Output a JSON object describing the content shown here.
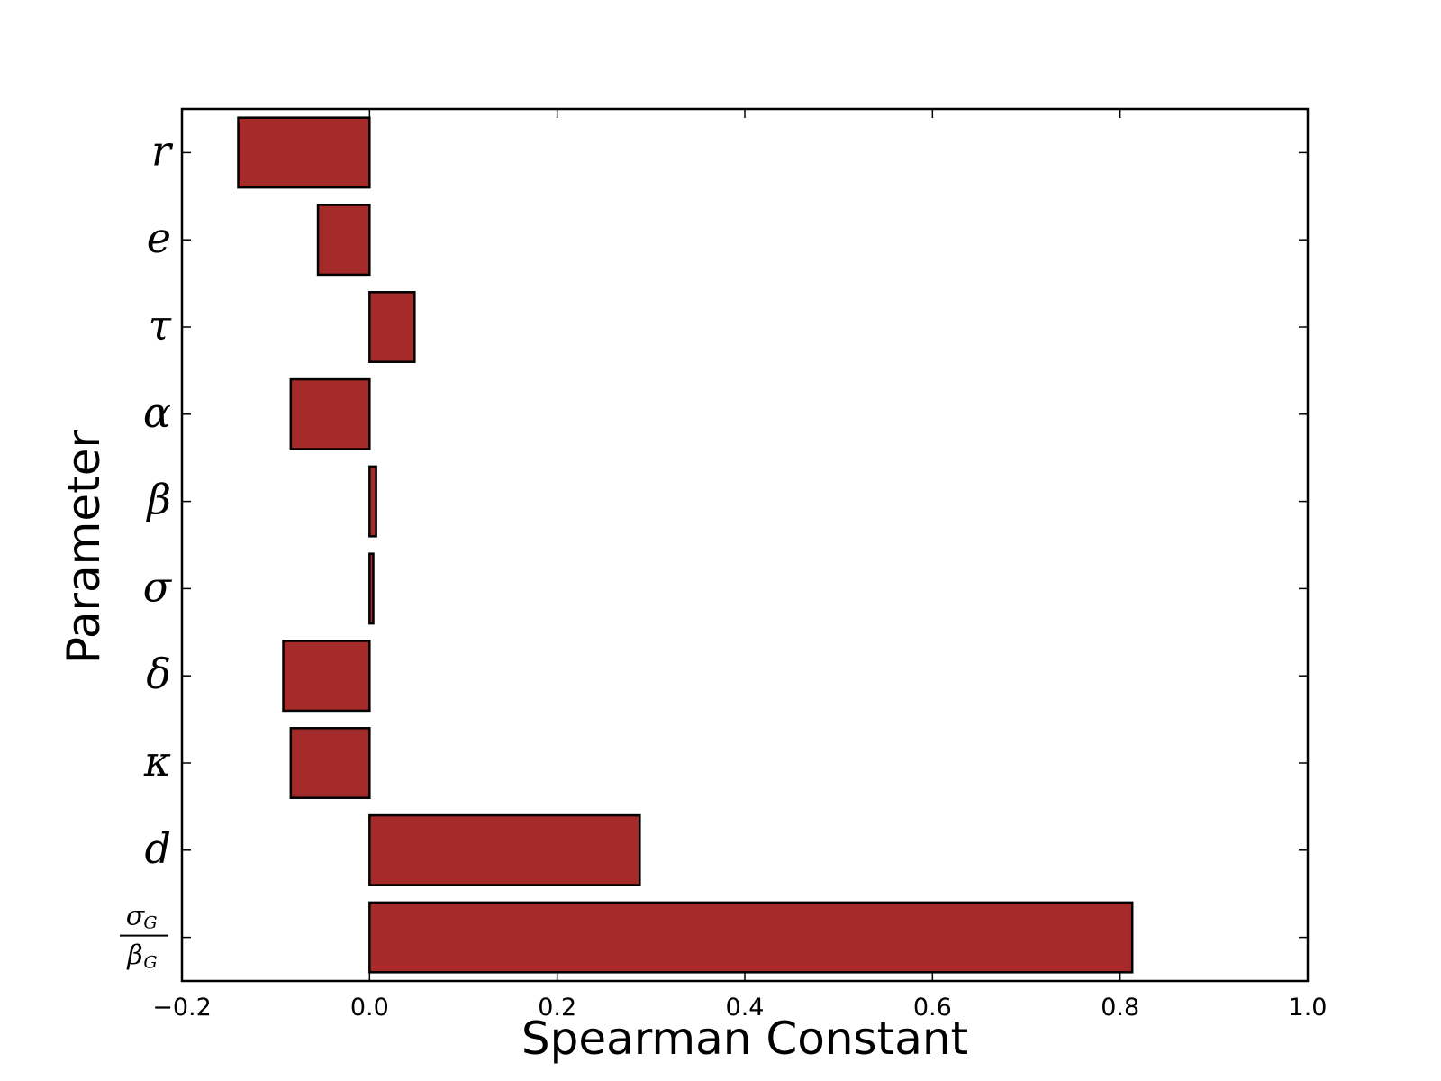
{
  "chart_data": {
    "type": "bar",
    "orientation": "horizontal",
    "categories": [
      "r",
      "e",
      "τ",
      "α",
      "β",
      "σ",
      "δ",
      "κ",
      "d",
      "σG/βG"
    ],
    "category_display": [
      {
        "text": "r"
      },
      {
        "text": "e"
      },
      {
        "text": "τ"
      },
      {
        "text": "α"
      },
      {
        "text": "β"
      },
      {
        "text": "σ"
      },
      {
        "text": "δ"
      },
      {
        "text": "κ"
      },
      {
        "text": "d"
      },
      {
        "numerator": "σ",
        "numerator_sub": "G",
        "denominator": "β",
        "denominator_sub": "G"
      }
    ],
    "values": [
      -0.14,
      -0.055,
      0.048,
      -0.084,
      0.007,
      0.004,
      -0.092,
      -0.084,
      0.288,
      0.813
    ],
    "xlabel": "Spearman Constant",
    "ylabel": "Parameter",
    "xlim": [
      -0.2,
      1.0
    ],
    "xticks": [
      "−0.2",
      "0.0",
      "0.2",
      "0.4",
      "0.6",
      "0.8",
      "1.0"
    ],
    "xtick_values": [
      -0.2,
      0.0,
      0.2,
      0.4,
      0.6,
      0.8,
      1.0
    ],
    "grid": false,
    "bar_color": "#a52a2a",
    "edge_color": "#000000"
  }
}
